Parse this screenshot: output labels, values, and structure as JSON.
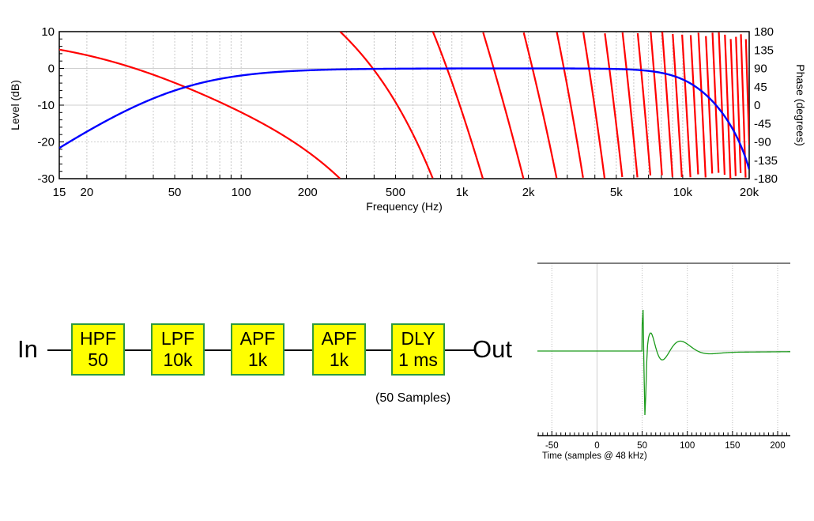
{
  "diagram": {
    "input_label": "In",
    "output_label": "Out",
    "blocks": [
      {
        "type": "HPF",
        "value": "50"
      },
      {
        "type": "LPF",
        "value": "10k"
      },
      {
        "type": "APF",
        "value": "1k"
      },
      {
        "type": "APF",
        "value": "1k"
      },
      {
        "type": "DLY",
        "value": "1 ms"
      }
    ],
    "delay_note": "(50 Samples)",
    "colors": {
      "block_fill": "#ffff00",
      "block_border": "#2e9a3e"
    }
  },
  "chart_data": [
    {
      "type": "line",
      "xlabel": "Frequency (Hz)",
      "ylabel": "Level (dB)",
      "y2label": "Phase (degrees)",
      "xscale": "log",
      "xlim": [
        15,
        20000
      ],
      "ylim": [
        -30,
        10
      ],
      "y2lim": [
        -180,
        180
      ],
      "xticks": [
        {
          "v": 15,
          "l": "15"
        },
        {
          "v": 20,
          "l": "20"
        },
        {
          "v": 50,
          "l": "50"
        },
        {
          "v": 100,
          "l": "100"
        },
        {
          "v": 200,
          "l": "200"
        },
        {
          "v": 500,
          "l": "500"
        },
        {
          "v": 1000,
          "l": "1k"
        },
        {
          "v": 2000,
          "l": "2k"
        },
        {
          "v": 5000,
          "l": "5k"
        },
        {
          "v": 10000,
          "l": "10k"
        },
        {
          "v": 20000,
          "l": "20k"
        }
      ],
      "yticks": [
        "10",
        "0",
        "-10",
        "-20",
        "-30"
      ],
      "y2ticks": [
        "180",
        "135",
        "90",
        "45",
        "0",
        "-45",
        "-90",
        "-135",
        "-180"
      ],
      "grid": true,
      "series": [
        {
          "quantity": "level",
          "axis": "left",
          "color": "#0000ff",
          "samples": [
            [
              15,
              -21.7
            ],
            [
              20,
              -17
            ],
            [
              50,
              -6
            ],
            [
              100,
              -2
            ],
            [
              200,
              -0.5
            ],
            [
              500,
              0
            ],
            [
              1000,
              0
            ],
            [
              2000,
              0
            ],
            [
              5000,
              -0.2
            ],
            [
              10000,
              -3
            ],
            [
              20000,
              -28
            ]
          ]
        },
        {
          "quantity": "phase",
          "axis": "right",
          "color": "#ff0000",
          "wrapped": true,
          "samples": [
            [
              15,
              147
            ],
            [
              50,
              85
            ],
            [
              400,
              90
            ],
            [
              1000,
              -105
            ]
          ]
        }
      ],
      "model": {
        "sample_rate": 48000,
        "hpf_hz": 50,
        "lpf_hz": 10000,
        "apf_hz": [
          1000,
          1000
        ],
        "delay_samples": 50
      }
    },
    {
      "type": "line",
      "xlabel": "Time (samples @ 48 kHz)",
      "xlim": [
        -66,
        214
      ],
      "xticks": [
        "-50",
        "0",
        "50",
        "100",
        "150",
        "200"
      ],
      "grid": true,
      "series": [
        {
          "quantity": "impulse response",
          "color": "#1a9a1a",
          "onset_sample": 50
        }
      ]
    }
  ]
}
